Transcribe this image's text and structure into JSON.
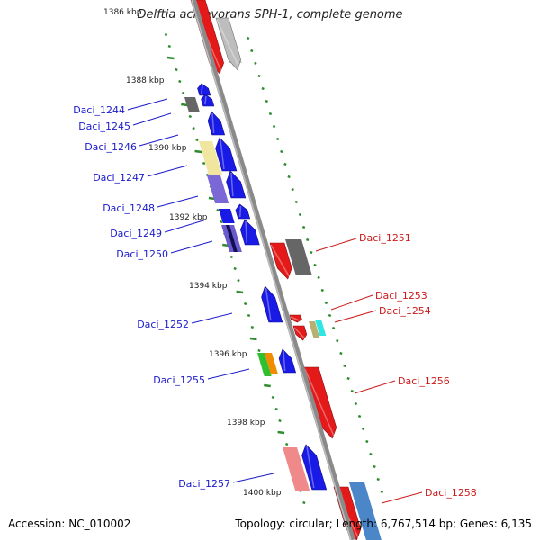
{
  "title": "Delftia acidovorans SPH-1, complete genome",
  "accession": "Accession: NC_010002",
  "summary": "Topology: circular; Length: 6,767,514 bp; Genes: 6,135",
  "ruler": [
    {
      "label": "1386 kbp",
      "kbp": 1386
    },
    {
      "label": "1388 kbp",
      "kbp": 1388
    },
    {
      "label": "1390 kbp",
      "kbp": 1390
    },
    {
      "label": "1392 kbp",
      "kbp": 1392
    },
    {
      "label": "1394 kbp",
      "kbp": 1394
    },
    {
      "label": "1396 kbp",
      "kbp": 1396
    },
    {
      "label": "1398 kbp",
      "kbp": 1398
    },
    {
      "label": "1400 kbp",
      "kbp": 1400
    }
  ],
  "genes": [
    {
      "label": "Daci_1244",
      "strand": "minus",
      "color": "#1a1ae6"
    },
    {
      "label": "Daci_1245",
      "strand": "minus",
      "color": "#1a1ae6"
    },
    {
      "label": "Daci_1246",
      "strand": "minus",
      "color": "#1a1ae6"
    },
    {
      "label": "Daci_1247",
      "strand": "minus",
      "color": "#1a1ae6"
    },
    {
      "label": "Daci_1248",
      "strand": "minus",
      "color": "#1a1ae6"
    },
    {
      "label": "Daci_1249",
      "strand": "minus",
      "color": "#1a1ae6"
    },
    {
      "label": "Daci_1250",
      "strand": "minus",
      "color": "#1a1ae6"
    },
    {
      "label": "Daci_1251",
      "strand": "plus",
      "color": "#e01a1a"
    },
    {
      "label": "Daci_1252",
      "strand": "minus",
      "color": "#1a1ae6"
    },
    {
      "label": "Daci_1253",
      "strand": "plus",
      "color": "#e01a1a"
    },
    {
      "label": "Daci_1254",
      "strand": "plus",
      "color": "#e01a1a"
    },
    {
      "label": "Daci_1255",
      "strand": "minus",
      "color": "#1a1ae6"
    },
    {
      "label": "Daci_1256",
      "strand": "plus",
      "color": "#e01a1a"
    },
    {
      "label": "Daci_1257",
      "strand": "minus",
      "color": "#1a1ae6"
    },
    {
      "label": "Daci_1258",
      "strand": "plus",
      "color": "#e01a1a"
    }
  ],
  "colors": {
    "minus_strand": "#1a1ae6",
    "plus_strand": "#e01a1a",
    "backbone": "#8c8c8c",
    "tick": "#2e8b2e"
  }
}
